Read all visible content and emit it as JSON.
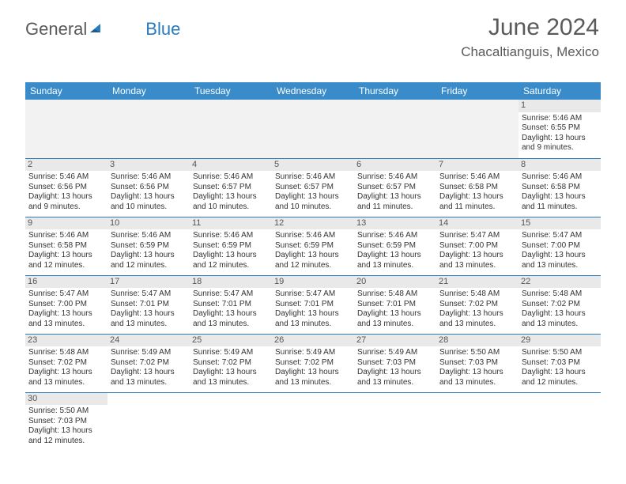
{
  "logo": {
    "part1": "General",
    "part2": "Blue"
  },
  "header": {
    "month": "June 2024",
    "location": "Chacaltianguis, Mexico"
  },
  "dayNames": [
    "Sunday",
    "Monday",
    "Tuesday",
    "Wednesday",
    "Thursday",
    "Friday",
    "Saturday"
  ],
  "colors": {
    "headerBg": "#3a8bc9",
    "headerText": "#ffffff",
    "cellBorder": "#2a7abf",
    "dayNumBg": "#e9e9e9",
    "emptyBg": "#f2f2f2",
    "titleColor": "#5a5a5a"
  },
  "weeks": [
    [
      null,
      null,
      null,
      null,
      null,
      null,
      {
        "n": "1",
        "sr": "Sunrise: 5:46 AM",
        "ss": "Sunset: 6:55 PM",
        "dl1": "Daylight: 13 hours",
        "dl2": "and 9 minutes."
      }
    ],
    [
      {
        "n": "2",
        "sr": "Sunrise: 5:46 AM",
        "ss": "Sunset: 6:56 PM",
        "dl1": "Daylight: 13 hours",
        "dl2": "and 9 minutes."
      },
      {
        "n": "3",
        "sr": "Sunrise: 5:46 AM",
        "ss": "Sunset: 6:56 PM",
        "dl1": "Daylight: 13 hours",
        "dl2": "and 10 minutes."
      },
      {
        "n": "4",
        "sr": "Sunrise: 5:46 AM",
        "ss": "Sunset: 6:57 PM",
        "dl1": "Daylight: 13 hours",
        "dl2": "and 10 minutes."
      },
      {
        "n": "5",
        "sr": "Sunrise: 5:46 AM",
        "ss": "Sunset: 6:57 PM",
        "dl1": "Daylight: 13 hours",
        "dl2": "and 10 minutes."
      },
      {
        "n": "6",
        "sr": "Sunrise: 5:46 AM",
        "ss": "Sunset: 6:57 PM",
        "dl1": "Daylight: 13 hours",
        "dl2": "and 11 minutes."
      },
      {
        "n": "7",
        "sr": "Sunrise: 5:46 AM",
        "ss": "Sunset: 6:58 PM",
        "dl1": "Daylight: 13 hours",
        "dl2": "and 11 minutes."
      },
      {
        "n": "8",
        "sr": "Sunrise: 5:46 AM",
        "ss": "Sunset: 6:58 PM",
        "dl1": "Daylight: 13 hours",
        "dl2": "and 11 minutes."
      }
    ],
    [
      {
        "n": "9",
        "sr": "Sunrise: 5:46 AM",
        "ss": "Sunset: 6:58 PM",
        "dl1": "Daylight: 13 hours",
        "dl2": "and 12 minutes."
      },
      {
        "n": "10",
        "sr": "Sunrise: 5:46 AM",
        "ss": "Sunset: 6:59 PM",
        "dl1": "Daylight: 13 hours",
        "dl2": "and 12 minutes."
      },
      {
        "n": "11",
        "sr": "Sunrise: 5:46 AM",
        "ss": "Sunset: 6:59 PM",
        "dl1": "Daylight: 13 hours",
        "dl2": "and 12 minutes."
      },
      {
        "n": "12",
        "sr": "Sunrise: 5:46 AM",
        "ss": "Sunset: 6:59 PM",
        "dl1": "Daylight: 13 hours",
        "dl2": "and 12 minutes."
      },
      {
        "n": "13",
        "sr": "Sunrise: 5:46 AM",
        "ss": "Sunset: 6:59 PM",
        "dl1": "Daylight: 13 hours",
        "dl2": "and 13 minutes."
      },
      {
        "n": "14",
        "sr": "Sunrise: 5:47 AM",
        "ss": "Sunset: 7:00 PM",
        "dl1": "Daylight: 13 hours",
        "dl2": "and 13 minutes."
      },
      {
        "n": "15",
        "sr": "Sunrise: 5:47 AM",
        "ss": "Sunset: 7:00 PM",
        "dl1": "Daylight: 13 hours",
        "dl2": "and 13 minutes."
      }
    ],
    [
      {
        "n": "16",
        "sr": "Sunrise: 5:47 AM",
        "ss": "Sunset: 7:00 PM",
        "dl1": "Daylight: 13 hours",
        "dl2": "and 13 minutes."
      },
      {
        "n": "17",
        "sr": "Sunrise: 5:47 AM",
        "ss": "Sunset: 7:01 PM",
        "dl1": "Daylight: 13 hours",
        "dl2": "and 13 minutes."
      },
      {
        "n": "18",
        "sr": "Sunrise: 5:47 AM",
        "ss": "Sunset: 7:01 PM",
        "dl1": "Daylight: 13 hours",
        "dl2": "and 13 minutes."
      },
      {
        "n": "19",
        "sr": "Sunrise: 5:47 AM",
        "ss": "Sunset: 7:01 PM",
        "dl1": "Daylight: 13 hours",
        "dl2": "and 13 minutes."
      },
      {
        "n": "20",
        "sr": "Sunrise: 5:48 AM",
        "ss": "Sunset: 7:01 PM",
        "dl1": "Daylight: 13 hours",
        "dl2": "and 13 minutes."
      },
      {
        "n": "21",
        "sr": "Sunrise: 5:48 AM",
        "ss": "Sunset: 7:02 PM",
        "dl1": "Daylight: 13 hours",
        "dl2": "and 13 minutes."
      },
      {
        "n": "22",
        "sr": "Sunrise: 5:48 AM",
        "ss": "Sunset: 7:02 PM",
        "dl1": "Daylight: 13 hours",
        "dl2": "and 13 minutes."
      }
    ],
    [
      {
        "n": "23",
        "sr": "Sunrise: 5:48 AM",
        "ss": "Sunset: 7:02 PM",
        "dl1": "Daylight: 13 hours",
        "dl2": "and 13 minutes."
      },
      {
        "n": "24",
        "sr": "Sunrise: 5:49 AM",
        "ss": "Sunset: 7:02 PM",
        "dl1": "Daylight: 13 hours",
        "dl2": "and 13 minutes."
      },
      {
        "n": "25",
        "sr": "Sunrise: 5:49 AM",
        "ss": "Sunset: 7:02 PM",
        "dl1": "Daylight: 13 hours",
        "dl2": "and 13 minutes."
      },
      {
        "n": "26",
        "sr": "Sunrise: 5:49 AM",
        "ss": "Sunset: 7:02 PM",
        "dl1": "Daylight: 13 hours",
        "dl2": "and 13 minutes."
      },
      {
        "n": "27",
        "sr": "Sunrise: 5:49 AM",
        "ss": "Sunset: 7:03 PM",
        "dl1": "Daylight: 13 hours",
        "dl2": "and 13 minutes."
      },
      {
        "n": "28",
        "sr": "Sunrise: 5:50 AM",
        "ss": "Sunset: 7:03 PM",
        "dl1": "Daylight: 13 hours",
        "dl2": "and 13 minutes."
      },
      {
        "n": "29",
        "sr": "Sunrise: 5:50 AM",
        "ss": "Sunset: 7:03 PM",
        "dl1": "Daylight: 13 hours",
        "dl2": "and 12 minutes."
      }
    ],
    [
      {
        "n": "30",
        "sr": "Sunrise: 5:50 AM",
        "ss": "Sunset: 7:03 PM",
        "dl1": "Daylight: 13 hours",
        "dl2": "and 12 minutes."
      },
      null,
      null,
      null,
      null,
      null,
      null
    ]
  ]
}
